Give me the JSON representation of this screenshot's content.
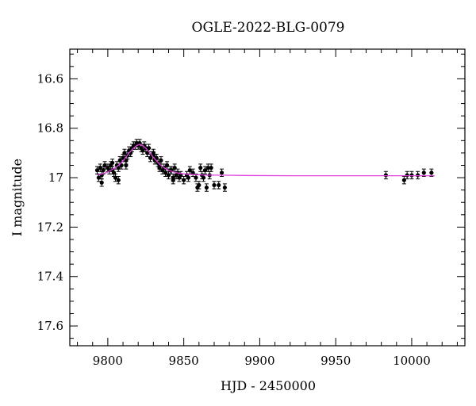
{
  "chart_data": {
    "type": "scatter",
    "title": "OGLE-2022-BLG-0079",
    "xlabel": "HJD - 2450000",
    "ylabel": "I magnitude",
    "xlim": [
      9775,
      10035
    ],
    "ylim": [
      17.68,
      16.48
    ],
    "y_inverted": true,
    "grid": false,
    "xticks": [
      9800,
      9850,
      9900,
      9950,
      10000
    ],
    "xtick_labels": [
      "9800",
      "9850",
      "9900",
      "9950",
      "10000"
    ],
    "yticks": [
      16.6,
      16.8,
      17.0,
      17.2,
      17.4,
      17.6
    ],
    "ytick_labels": [
      "16.6",
      "16.8",
      "17",
      "17.2",
      "17.4",
      "17.6"
    ],
    "colors": {
      "data": "#000000",
      "model": "#e040e0"
    },
    "series": [
      {
        "type": "scatter_errorbar",
        "x": [
          9793,
          9794,
          9795,
          9796,
          9797,
          9798,
          9800,
          9801,
          9802,
          9803,
          9804,
          9805,
          9806,
          9807,
          9808,
          9809,
          9810,
          9811,
          9812,
          9813,
          9814,
          9815,
          9816,
          9817,
          9818,
          9819,
          9820,
          9821,
          9822,
          9823,
          9824,
          9825,
          9826,
          9827,
          9828,
          9829,
          9830,
          9831,
          9832,
          9833,
          9834,
          9835,
          9836,
          9837,
          9838,
          9839,
          9840,
          9841,
          9842,
          9843,
          9844,
          9845,
          9846,
          9847,
          9848,
          9850,
          9852,
          9854,
          9856,
          9858,
          9859,
          9860,
          9861,
          9862,
          9863,
          9864,
          9865,
          9866,
          9867,
          9868,
          9870,
          9873,
          9875,
          9877,
          9983,
          9995,
          9997,
          10000,
          10004,
          10008,
          10013,
          9796,
          9803,
          9807,
          9812,
          9830,
          9834,
          9838,
          9843,
          9853
        ],
        "y": [
          16.97,
          17.0,
          16.96,
          16.99,
          16.97,
          16.95,
          16.96,
          16.97,
          16.95,
          16.94,
          16.98,
          17.0,
          16.95,
          16.96,
          16.93,
          16.95,
          16.92,
          16.9,
          16.93,
          16.91,
          16.89,
          16.9,
          16.88,
          16.87,
          16.87,
          16.86,
          16.87,
          16.86,
          16.88,
          16.89,
          16.87,
          16.88,
          16.9,
          16.88,
          16.92,
          16.91,
          16.9,
          16.93,
          16.92,
          16.94,
          16.95,
          16.93,
          16.97,
          16.96,
          16.98,
          16.95,
          16.99,
          16.97,
          16.97,
          17.0,
          16.96,
          16.99,
          16.98,
          17.0,
          16.99,
          17.01,
          16.99,
          16.97,
          16.98,
          17.0,
          17.04,
          17.03,
          16.96,
          16.99,
          17.0,
          16.97,
          17.04,
          16.96,
          16.99,
          16.96,
          17.03,
          17.03,
          16.98,
          17.04,
          16.99,
          17.01,
          16.99,
          16.99,
          16.99,
          16.98,
          16.98,
          17.02,
          16.97,
          17.01,
          16.95,
          16.91,
          16.96,
          16.98,
          17.01,
          17.0
        ],
        "yerr": [
          0.015,
          0.015,
          0.015,
          0.015,
          0.015,
          0.015,
          0.015,
          0.015,
          0.015,
          0.015,
          0.015,
          0.015,
          0.015,
          0.015,
          0.015,
          0.015,
          0.015,
          0.015,
          0.015,
          0.015,
          0.015,
          0.015,
          0.015,
          0.015,
          0.015,
          0.015,
          0.015,
          0.015,
          0.015,
          0.015,
          0.015,
          0.015,
          0.015,
          0.015,
          0.015,
          0.015,
          0.015,
          0.015,
          0.015,
          0.015,
          0.015,
          0.015,
          0.015,
          0.015,
          0.015,
          0.015,
          0.015,
          0.015,
          0.015,
          0.015,
          0.015,
          0.015,
          0.015,
          0.015,
          0.015,
          0.015,
          0.015,
          0.015,
          0.015,
          0.015,
          0.015,
          0.015,
          0.015,
          0.015,
          0.015,
          0.015,
          0.015,
          0.015,
          0.015,
          0.015,
          0.015,
          0.015,
          0.015,
          0.015,
          0.015,
          0.015,
          0.015,
          0.015,
          0.015,
          0.015,
          0.015,
          0.015,
          0.015,
          0.015,
          0.015,
          0.015,
          0.015,
          0.015,
          0.015,
          0.015
        ]
      },
      {
        "type": "line",
        "x": [
          9793,
          9796,
          9799,
          9802,
          9805,
          9808,
          9811,
          9814,
          9817,
          9819,
          9821,
          9823,
          9825,
          9827,
          9829,
          9831,
          9834,
          9837,
          9840,
          9844,
          9848,
          9852,
          9858,
          9865,
          9875,
          9890,
          9920,
          9960,
          10000,
          10015
        ],
        "y": [
          16.99,
          16.985,
          16.98,
          16.97,
          16.96,
          16.945,
          16.925,
          16.9,
          16.88,
          16.87,
          16.865,
          16.87,
          16.88,
          16.895,
          16.91,
          16.925,
          16.945,
          16.96,
          16.97,
          16.978,
          16.983,
          16.986,
          16.988,
          16.99,
          16.99,
          16.991,
          16.992,
          16.992,
          16.992,
          16.992
        ]
      }
    ]
  }
}
